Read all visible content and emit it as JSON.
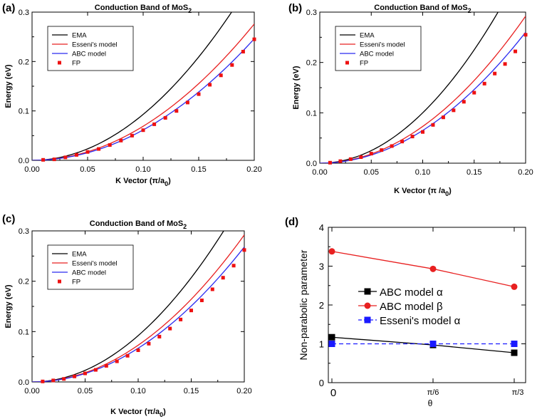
{
  "chart_data": [
    {
      "panel": "(a)",
      "type": "line",
      "title": "Conduction Band of MoS",
      "title_sub": "2",
      "xlabel": "K Vector (π/a",
      "xlabel_sub": "0",
      "xlabel_end": ")",
      "ylabel": "Energy (eV)",
      "xlim": [
        0,
        0.2
      ],
      "ylim": [
        0,
        0.3
      ],
      "xticks": [
        "0.00",
        "0.05",
        "0.10",
        "0.15",
        "0.20"
      ],
      "yticks": [
        "0.0",
        "0.1",
        "0.2",
        "0.3"
      ],
      "legend": {
        "placement": "top-left",
        "entries": [
          "EMA",
          "Esseni's model",
          "ABC model",
          "FP"
        ]
      },
      "series": [
        {
          "name": "EMA",
          "color": "#000000",
          "style": "line",
          "coef": 9.3
        },
        {
          "name": "Esseni's model",
          "color": "#e82020",
          "style": "line",
          "coef": 6.9
        },
        {
          "name": "ABC model",
          "color": "#2a2af0",
          "style": "line",
          "coef": 6.15
        },
        {
          "name": "FP",
          "color": "#ee1111",
          "style": "markers",
          "x": [
            0.01,
            0.02,
            0.03,
            0.04,
            0.05,
            0.06,
            0.07,
            0.08,
            0.09,
            0.1,
            0.11,
            0.12,
            0.13,
            0.14,
            0.15,
            0.16,
            0.17,
            0.18,
            0.19,
            0.2
          ],
          "y": [
            0.001,
            0.002,
            0.006,
            0.011,
            0.017,
            0.023,
            0.031,
            0.04,
            0.05,
            0.061,
            0.073,
            0.086,
            0.1,
            0.117,
            0.134,
            0.153,
            0.172,
            0.193,
            0.22,
            0.245
          ]
        }
      ]
    },
    {
      "panel": "(b)",
      "type": "line",
      "title": "Conduction Band of MoS",
      "title_sub": "2",
      "xlabel": "K Vector (π /a",
      "xlabel_sub": "0",
      "xlabel_end": ")",
      "ylabel": "Energy (eV)",
      "xlim": [
        0,
        0.2
      ],
      "ylim": [
        0,
        0.3
      ],
      "xticks": [
        "0.00",
        "0.05",
        "0.10",
        "0.15",
        "0.20"
      ],
      "yticks": [
        "0.0",
        "0.1",
        "0.2",
        "0.3"
      ],
      "legend": {
        "placement": "top-left",
        "entries": [
          "EMA",
          "Esseni's model",
          "ABC model",
          "FP"
        ]
      },
      "series": [
        {
          "name": "EMA",
          "color": "#000000",
          "style": "line",
          "coef": 10.0
        },
        {
          "name": "Esseni's model",
          "color": "#e82020",
          "style": "line",
          "coef": 7.3
        },
        {
          "name": "ABC model",
          "color": "#2a2af0",
          "style": "line",
          "coef": 6.5
        },
        {
          "name": "FP",
          "color": "#ee1111",
          "style": "markers",
          "x": [
            0.01,
            0.02,
            0.03,
            0.04,
            0.05,
            0.06,
            0.07,
            0.08,
            0.09,
            0.1,
            0.11,
            0.12,
            0.13,
            0.14,
            0.15,
            0.16,
            0.17,
            0.18,
            0.19,
            0.2
          ],
          "y": [
            0.001,
            0.004,
            0.008,
            0.012,
            0.019,
            0.026,
            0.034,
            0.043,
            0.053,
            0.062,
            0.076,
            0.091,
            0.105,
            0.122,
            0.14,
            0.158,
            0.178,
            0.197,
            0.222,
            0.255
          ]
        }
      ]
    },
    {
      "panel": "(c)",
      "type": "line",
      "title": "Conduction Band of MoS",
      "title_sub": "2",
      "xlabel": "K Vector (π/a",
      "xlabel_sub": "0",
      "xlabel_end": ")",
      "ylabel": "Energy (eV)",
      "xlim": [
        0,
        0.2
      ],
      "ylim": [
        0,
        0.3
      ],
      "xticks": [
        "0.00",
        "0.05",
        "0.10",
        "0.15",
        "0.20"
      ],
      "yticks": [
        "0.0",
        "0.1",
        "0.2",
        "0.3"
      ],
      "legend": {
        "placement": "top-left",
        "entries": [
          "EMA",
          "Esseni's model",
          "ABC model",
          "FP"
        ]
      },
      "series": [
        {
          "name": "EMA",
          "color": "#000000",
          "style": "line",
          "coef": 9.2
        },
        {
          "name": "Esseni's model",
          "color": "#e82020",
          "style": "line",
          "coef": 7.3
        },
        {
          "name": "ABC model",
          "color": "#2a2af0",
          "style": "line",
          "coef": 6.7
        },
        {
          "name": "FP",
          "color": "#ee1111",
          "style": "markers",
          "x": [
            0.01,
            0.02,
            0.03,
            0.04,
            0.05,
            0.06,
            0.07,
            0.08,
            0.09,
            0.1,
            0.11,
            0.12,
            0.13,
            0.14,
            0.15,
            0.16,
            0.17,
            0.18,
            0.19,
            0.2
          ],
          "y": [
            0.001,
            0.003,
            0.006,
            0.011,
            0.017,
            0.024,
            0.032,
            0.041,
            0.052,
            0.063,
            0.076,
            0.09,
            0.106,
            0.124,
            0.142,
            0.162,
            0.184,
            0.207,
            0.231,
            0.262
          ]
        }
      ]
    },
    {
      "panel": "(d)",
      "type": "line",
      "title": "",
      "xlabel": "θ",
      "ylabel": "Non-parabolic parameter",
      "ylim": [
        0,
        4
      ],
      "xticks": [
        "0",
        "π/6",
        "π/3"
      ],
      "yticks": [
        "0",
        "1",
        "2",
        "3",
        "4"
      ],
      "legend": {
        "placement": "center-left",
        "entries": [
          "ABC model α",
          "ABC model β",
          "Esseni's model α"
        ]
      },
      "series": [
        {
          "name": "ABC model α",
          "color": "#000000",
          "marker": "square",
          "dash": false,
          "x": [
            0,
            1,
            2
          ],
          "y": [
            1.17,
            0.97,
            0.77
          ]
        },
        {
          "name": "ABC model β",
          "color": "#e82020",
          "marker": "circle",
          "dash": false,
          "x": [
            0,
            1,
            2
          ],
          "y": [
            3.38,
            2.93,
            2.47
          ]
        },
        {
          "name": "Esseni's model α",
          "color": "#1a1aff",
          "marker": "square",
          "dash": true,
          "x": [
            0,
            1,
            2
          ],
          "y": [
            1.0,
            1.0,
            1.0
          ]
        }
      ]
    }
  ]
}
